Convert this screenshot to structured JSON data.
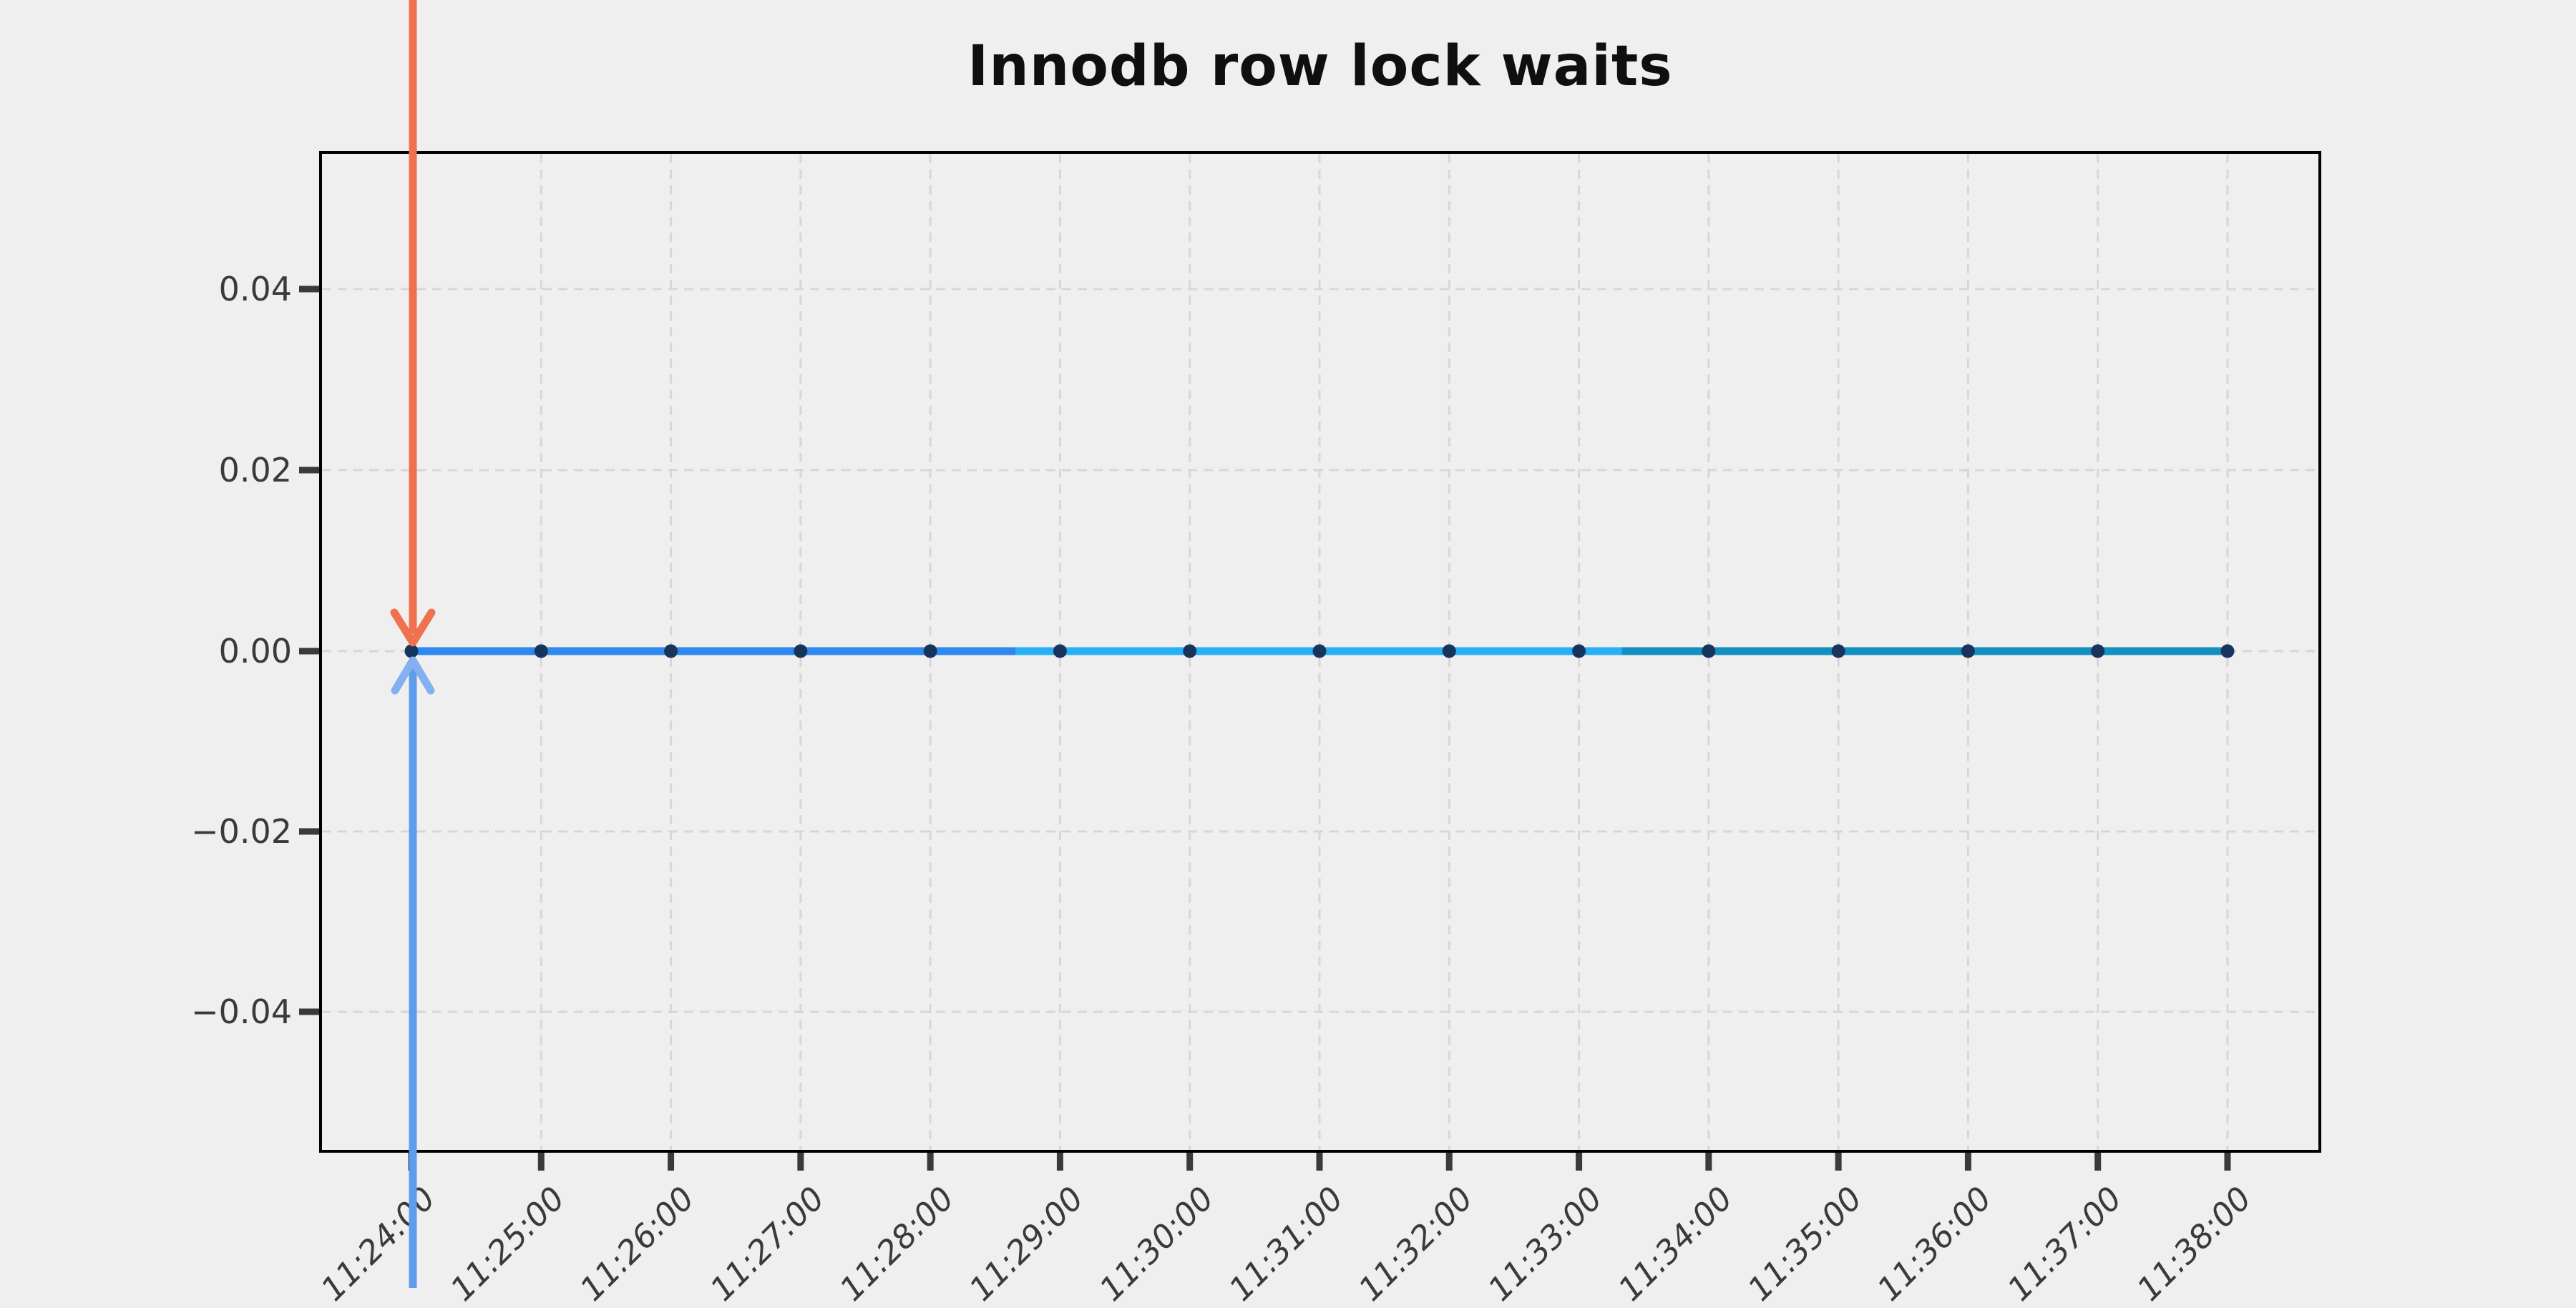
{
  "title": "Innodb row lock waits",
  "colors": {
    "background": "#efefef",
    "spine": "#000000",
    "grid": "#d7d7d7",
    "tick_mark": "#3a3a3a",
    "tick_label": "#3a3a3a",
    "title_color": "#0f0f0f",
    "marker": "#17345c",
    "arrow_down": "#f0714d",
    "arrow_up_shaft": "#5f9cec",
    "arrow_up_head": "#84b0f2"
  },
  "chart_data": {
    "type": "line",
    "title": "Innodb row lock waits",
    "x": [
      "11:24:00",
      "11:25:00",
      "11:26:00",
      "11:27:00",
      "11:28:00",
      "11:29:00",
      "11:30:00",
      "11:31:00",
      "11:32:00",
      "11:33:00",
      "11:34:00",
      "11:35:00",
      "11:36:00",
      "11:37:00",
      "11:38:00"
    ],
    "values": [
      0,
      0,
      0,
      0,
      0,
      0,
      0,
      0,
      0,
      0,
      0,
      0,
      0,
      0,
      0
    ],
    "y_tick_labels": [
      "0.04",
      "0.02",
      "0.00",
      "−0.02",
      "−0.04"
    ],
    "y_tick_values": [
      0.04,
      0.02,
      0.0,
      -0.02,
      -0.04
    ],
    "ylim": [
      -0.055,
      0.055
    ],
    "xlabel": "",
    "ylabel": "",
    "grid": "dashed",
    "legend": "none",
    "line_width": 11,
    "marker_style": "circle",
    "line_segments": [
      {
        "name": "segment-early",
        "color": "#2f88ef",
        "from_x_index": 0,
        "to_x_index": 4.66,
        "value": 0
      },
      {
        "name": "segment-mid",
        "color": "#27b1f4",
        "from_x_index": 4.66,
        "to_x_index": 9.33,
        "value": 0
      },
      {
        "name": "segment-late",
        "color": "#1390c2",
        "from_x_index": 9.33,
        "to_x_index": 14,
        "value": 0
      }
    ],
    "annotations": [
      {
        "name": "arrow-down",
        "direction": "down",
        "x": "11:24:00",
        "y": 0,
        "color": "#f0714d"
      },
      {
        "name": "arrow-up",
        "direction": "up",
        "x": "11:24:00",
        "y": 0,
        "color": "#5f9cec"
      }
    ]
  }
}
